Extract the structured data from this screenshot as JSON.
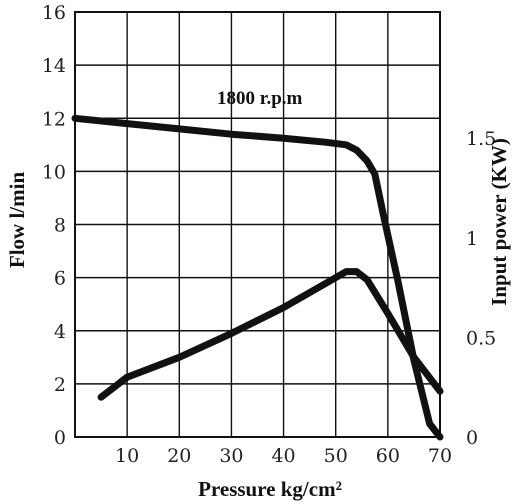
{
  "chart_data": {
    "type": "line",
    "title": "",
    "annotation": "1800 r.p.m",
    "xlabel": "Pressure  kg/cm²",
    "ylabel": "Flow  l/min",
    "y2label": "Input power (KW)",
    "xlim": [
      0,
      70
    ],
    "ylim": [
      0,
      16
    ],
    "y2lim": [
      0,
      2.133
    ],
    "x_ticks": [
      "10",
      "20",
      "30",
      "40",
      "50",
      "60",
      "70"
    ],
    "y_ticks": [
      "0",
      "2",
      "4",
      "6",
      "8",
      "10",
      "12",
      "14",
      "16"
    ],
    "y2_ticks": [
      {
        "label": "0",
        "value": 0
      },
      {
        "label": "0.5",
        "value": 0.5
      },
      {
        "label": "1",
        "value": 1
      },
      {
        "label": "1.5",
        "value": 1.5
      }
    ],
    "grid": true,
    "series": [
      {
        "axis": "left",
        "x": [
          0,
          10,
          20,
          30,
          40,
          48,
          52,
          54,
          56,
          57.5,
          59,
          62,
          65,
          68,
          70
        ],
        "values": [
          12.0,
          11.8,
          11.6,
          11.4,
          11.25,
          11.1,
          11.0,
          10.8,
          10.4,
          9.9,
          8.5,
          5.8,
          2.9,
          0.5,
          0
        ]
      },
      {
        "axis": "right",
        "x": [
          5,
          10,
          20,
          30,
          40,
          48,
          52,
          54,
          56,
          60,
          65,
          70
        ],
        "values": [
          0.2,
          0.3,
          0.4,
          0.52,
          0.65,
          0.77,
          0.83,
          0.83,
          0.79,
          0.62,
          0.4,
          0.23
        ]
      }
    ]
  }
}
